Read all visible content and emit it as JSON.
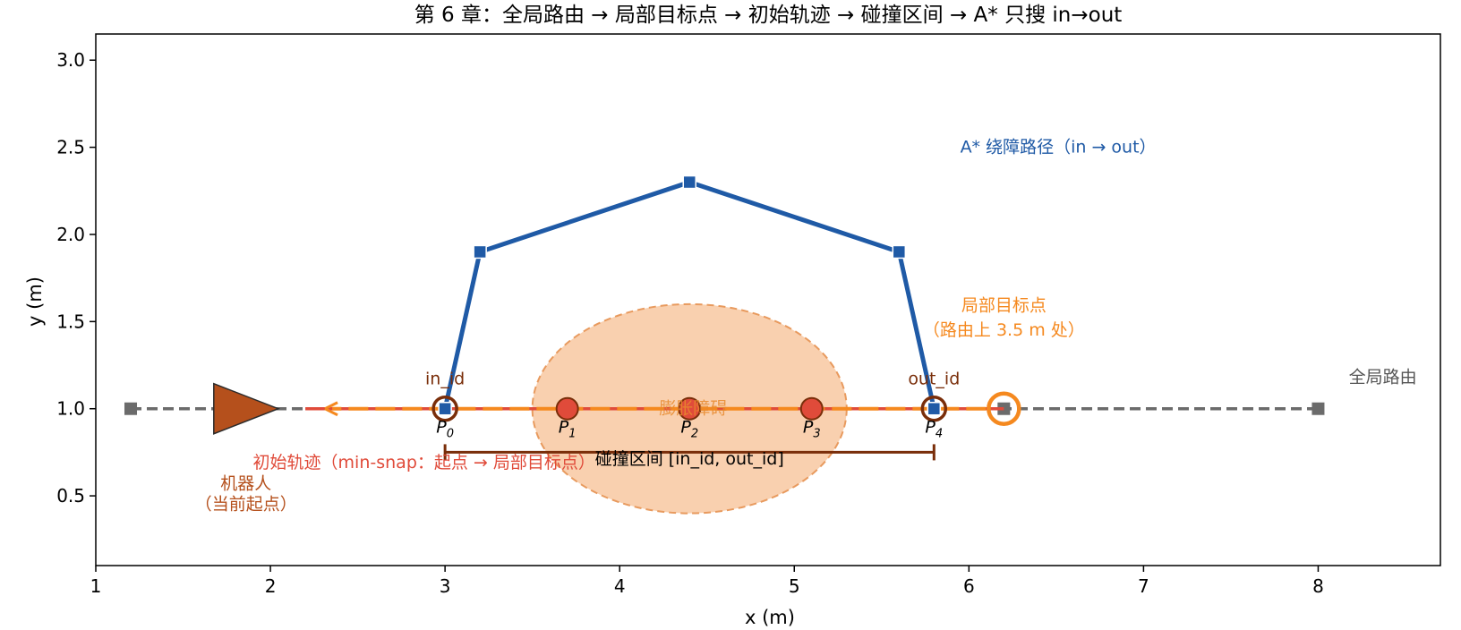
{
  "chart_data": {
    "type": "line",
    "title": "第 6 章：全局路由 → 局部目标点 → 初始轨迹 → 碰撞区间 → A* 只搜 in→out",
    "xlabel": "x (m)",
    "ylabel": "y (m)",
    "xlim": [
      1.0,
      8.7
    ],
    "ylim": [
      0.1,
      3.15
    ],
    "xticks": [
      "1",
      "2",
      "3",
      "4",
      "5",
      "6",
      "7",
      "8"
    ],
    "yticks": [
      "0.5",
      "1.0",
      "1.5",
      "2.0",
      "2.5",
      "3.0"
    ],
    "grid": false,
    "series": [
      {
        "key": "global_route",
        "color": "#6b6b6b",
        "style": "dashed",
        "x": [
          1.2,
          6.2,
          8.0
        ],
        "y": [
          1.0,
          1.0,
          1.0
        ]
      },
      {
        "key": "initial_traj",
        "color": "#e04b3a",
        "style": "solid",
        "x": [
          2.2,
          6.2
        ],
        "y": [
          1.0,
          1.0
        ]
      },
      {
        "key": "astar_path",
        "color": "#1f5aa6",
        "style": "solid",
        "x": [
          3.0,
          3.2,
          4.4,
          5.6,
          5.8
        ],
        "y": [
          1.0,
          1.9,
          2.3,
          1.9,
          1.0
        ]
      }
    ],
    "trajectory_points": {
      "x": [
        3.0,
        3.7,
        4.4,
        5.1,
        5.8
      ],
      "y": [
        1.0,
        1.0,
        1.0,
        1.0,
        1.0
      ],
      "labels": [
        "P",
        "P",
        "P",
        "P",
        "P"
      ],
      "subscripts": [
        "0",
        "1",
        "2",
        "3",
        "4"
      ]
    },
    "obstacle": {
      "cx": 4.4,
      "cy": 1.0,
      "rx": 0.9,
      "ry": 0.6,
      "color": "#f5b07a"
    },
    "robot": {
      "x": 1.85,
      "y": 1.0
    },
    "local_goal": {
      "x": 6.2,
      "y": 1.0,
      "color": "#f5891f"
    },
    "collision_interval": {
      "x_start": 3.0,
      "x_end": 5.8,
      "y": 0.75,
      "color": "#7a2e0a"
    },
    "annotations": {
      "global_route": "全局路由",
      "astar": "A* 绕障路径（in → out）",
      "local_goal_line1": "局部目标点",
      "local_goal_line2": "（路由上 3.5 m 处）",
      "in_id": "in_id",
      "out_id": "out_id",
      "obstacle": "膨胀障碍",
      "interval": "碰撞区间 [in_id, out_id]",
      "initial_traj": "初始轨迹（min-snap：起点 → 局部目标点）",
      "robot_line1": "机器人",
      "robot_line2": "（当前起点）"
    }
  }
}
